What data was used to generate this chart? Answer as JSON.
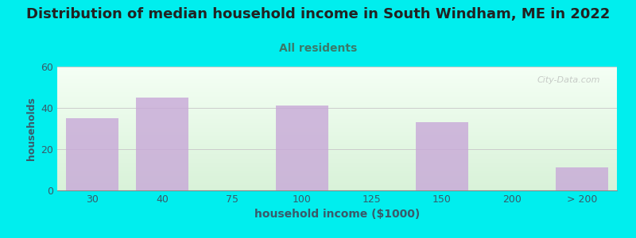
{
  "title": "Distribution of median household income in South Windham, ME in 2022",
  "subtitle": "All residents",
  "xlabel": "household income ($1000)",
  "ylabel": "households",
  "categories": [
    "30",
    "40",
    "75",
    "100",
    "125",
    "150",
    "200",
    "> 200"
  ],
  "values": [
    35,
    45,
    0,
    41,
    0,
    33,
    0,
    11
  ],
  "bar_color": "#c8a8d8",
  "bar_alpha": 0.8,
  "bg_color_top": "#f5fff5",
  "bg_color_bottom": "#d8eed8",
  "outer_bg_color": "#00eeee",
  "title_color": "#222222",
  "subtitle_color": "#3a7a6a",
  "axis_label_color": "#3a5a6a",
  "tick_color": "#3a5a6a",
  "ylim": [
    0,
    60
  ],
  "yticks": [
    0,
    20,
    40,
    60
  ],
  "title_fontsize": 13,
  "subtitle_fontsize": 10,
  "xlabel_fontsize": 10,
  "ylabel_fontsize": 9,
  "watermark": "City-Data.com",
  "grid_color": "#cccccc"
}
